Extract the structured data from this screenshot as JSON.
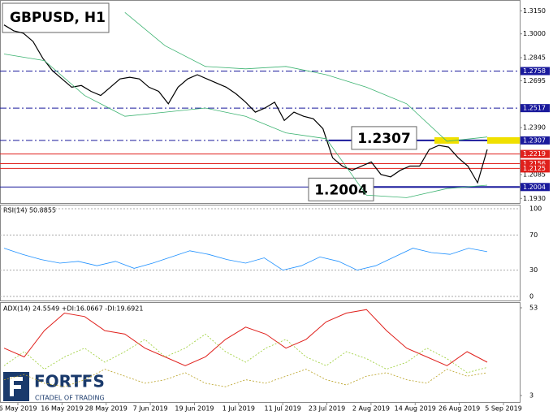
{
  "chart_data": {
    "type": "line",
    "title": "GBPUSD, H1",
    "x_labels": [
      "6 May 2019",
      "16 May 2019",
      "28 May 2019",
      "7 Jun 2019",
      "19 Jun 2019",
      "1 Jul 2019",
      "11 Jul 2019",
      "23 Jul 2019",
      "2 Aug 2019",
      "14 Aug 2019",
      "26 Aug 2019",
      "5 Sep 2019"
    ],
    "ylim": [
      1.19,
      1.322
    ],
    "yticks": [
      {
        "value": 1.315,
        "label": "1.3150"
      },
      {
        "value": 1.3,
        "label": "1.3000"
      },
      {
        "value": 1.2845,
        "label": "1.2845"
      },
      {
        "value": 1.2695,
        "label": "1.2695"
      },
      {
        "value": 1.239,
        "label": "1.2390"
      },
      {
        "value": 1.2085,
        "label": "1.2085"
      },
      {
        "value": 1.193,
        "label": "1.1930"
      }
    ],
    "series": [
      {
        "color": "#000000",
        "values": [
          1.3058,
          1.302,
          1.3004,
          1.295,
          1.2842,
          1.2761,
          1.2707,
          1.2653,
          1.2664,
          1.2626,
          1.2599,
          1.2653,
          1.2707,
          1.2718,
          1.2707,
          1.2653,
          1.2626,
          1.2545,
          1.2653,
          1.2707,
          1.2734,
          1.2707,
          1.268,
          1.2653,
          1.261,
          1.2556,
          1.2491,
          1.2518,
          1.2556,
          1.2437,
          1.2491,
          1.2464,
          1.2448,
          1.2383,
          1.2194,
          1.214,
          1.2113,
          1.214,
          1.2167,
          1.2086,
          1.207,
          1.2113,
          1.214,
          1.214,
          1.2248,
          1.2275,
          1.2264,
          1.2194,
          1.214,
          1.2032,
          1.2248
        ]
      },
      {
        "color": "#3cb371",
        "values": [
          null,
          null,
          null,
          1.3139,
          1.2923,
          1.2788,
          1.2772,
          1.2788,
          1.2734,
          1.2653,
          1.2545,
          1.2302,
          1.2329
        ]
      },
      {
        "color": "#3cb371",
        "values": [
          1.2869,
          1.2826,
          1.2599,
          1.2464,
          1.2491,
          1.2518,
          1.2464,
          1.2356,
          1.2318,
          1.1951,
          1.1935,
          1.1994,
          1.2016
        ]
      }
    ],
    "levels": [
      {
        "value": 1.2758,
        "label": "1.2758",
        "color": "#1a1a9c",
        "style": "dashdot"
      },
      {
        "value": 1.2517,
        "label": "1.2517",
        "color": "#1a1a9c",
        "style": "dashdot"
      },
      {
        "value": 1.2307,
        "label": "1.2307",
        "color": "#1a1a9c",
        "style": "dashdot"
      },
      {
        "value": 1.2219,
        "label": "1.2219",
        "color": "#e0201c",
        "style": "solid"
      },
      {
        "value": 1.2156,
        "label": "1.2156",
        "color": "#e0201c",
        "style": "solid"
      },
      {
        "value": 1.2125,
        "label": "1.2125",
        "color": "#e0201c",
        "style": "solid"
      },
      {
        "value": 1.2004,
        "label": "1.2004",
        "color": "#1a1a9c",
        "style": "solid"
      }
    ],
    "annotations": [
      {
        "text": "1.2307",
        "value": 1.2307
      },
      {
        "text": "1.2004",
        "value": 1.2004
      }
    ]
  },
  "rsi": {
    "label": "RSI(14) 50.8855",
    "ylim": [
      0,
      100
    ],
    "yticks": [
      100,
      70,
      30,
      0
    ],
    "color": "#1e90ff",
    "values": [
      55,
      48,
      42,
      38,
      40,
      35,
      40,
      32,
      38,
      45,
      52,
      48,
      42,
      38,
      44,
      30,
      35,
      45,
      40,
      30,
      35,
      45,
      55,
      50,
      48,
      55,
      51
    ]
  },
  "adx": {
    "label": "ADX(14) 24.5549 +DI:16.0667 -DI:19.6921",
    "ylim": [
      3,
      53
    ],
    "yticks": [
      53,
      3
    ],
    "series": [
      {
        "color": "#e0201c",
        "values": [
          30,
          25,
          40,
          50,
          48,
          40,
          38,
          30,
          25,
          20,
          25,
          35,
          42,
          38,
          30,
          35,
          45,
          50,
          52,
          40,
          30,
          25,
          20,
          28,
          22
        ]
      },
      {
        "color": "#9acd32",
        "values": [
          20,
          28,
          18,
          25,
          30,
          22,
          28,
          35,
          25,
          30,
          38,
          28,
          22,
          30,
          35,
          25,
          20,
          28,
          24,
          18,
          22,
          30,
          24,
          16,
          19
        ]
      },
      {
        "color": "#b8a020",
        "values": [
          12,
          15,
          10,
          8,
          12,
          18,
          14,
          10,
          12,
          16,
          10,
          8,
          12,
          10,
          14,
          18,
          12,
          9,
          14,
          16,
          12,
          10,
          18,
          14,
          16
        ]
      }
    ]
  },
  "logo": {
    "name": "FORTFS",
    "tagline": "CITADEL OF TRADING"
  }
}
